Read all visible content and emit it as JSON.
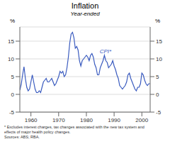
{
  "chart_data": {
    "type": "line",
    "title": "Inflation",
    "subtitle": "Year-ended",
    "ylabel": "%",
    "y2label": "%",
    "footnote": "* Excludes interest charges, tax changes associated with the new tax system and\neffects of major health policy changes.\nSources: ABS; RBA.",
    "x": [
      1956.0,
      1956.5,
      1957.0,
      1957.5,
      1958.0,
      1958.5,
      1959.0,
      1959.5,
      1960.0,
      1960.5,
      1961.0,
      1961.5,
      1962.0,
      1962.5,
      1963.0,
      1963.5,
      1964.0,
      1964.5,
      1965.0,
      1965.5,
      1966.0,
      1966.5,
      1967.0,
      1967.5,
      1968.0,
      1968.5,
      1969.0,
      1969.5,
      1970.0,
      1970.5,
      1971.0,
      1971.5,
      1972.0,
      1972.5,
      1973.0,
      1973.5,
      1974.0,
      1974.5,
      1975.0,
      1975.5,
      1976.0,
      1976.5,
      1977.0,
      1977.5,
      1978.0,
      1978.5,
      1979.0,
      1979.5,
      1980.0,
      1980.5,
      1981.0,
      1981.5,
      1982.0,
      1982.5,
      1983.0,
      1983.5,
      1984.0,
      1984.5,
      1985.0,
      1985.5,
      1986.0,
      1986.5,
      1987.0,
      1987.5,
      1988.0,
      1988.5,
      1989.0,
      1989.5,
      1990.0,
      1990.5,
      1991.0,
      1991.5,
      1992.0,
      1992.5,
      1993.0,
      1993.5,
      1994.0,
      1994.5,
      1995.0,
      1995.5,
      1996.0,
      1996.5,
      1997.0,
      1997.5,
      1998.0,
      1998.5,
      1999.0,
      1999.5,
      2000.0,
      2000.5,
      2001.0,
      2001.5,
      2002.0,
      2002.5,
      2003.0
    ],
    "series": [
      {
        "color": "#3a5bbf",
        "values": [
          1.2,
          2.8,
          5.5,
          7.8,
          4.5,
          2.0,
          1.0,
          1.5,
          3.5,
          5.5,
          3.5,
          1.5,
          0.5,
          0.5,
          1.0,
          0.5,
          2.0,
          3.5,
          4.0,
          4.5,
          3.5,
          3.5,
          4.0,
          4.5,
          3.5,
          2.5,
          3.0,
          4.0,
          5.0,
          6.5,
          6.0,
          6.5,
          5.0,
          5.5,
          7.5,
          10.5,
          14.5,
          17.0,
          17.5,
          16.0,
          13.0,
          13.5,
          12.5,
          9.5,
          8.0,
          9.5,
          10.0,
          10.5,
          11.0,
          10.5,
          9.5,
          11.0,
          11.5,
          10.5,
          8.5,
          7.5,
          5.5,
          5.5,
          7.5,
          8.5,
          9.5,
          11.0,
          9.5,
          9.0,
          7.5,
          8.0,
          8.5,
          9.5,
          8.0,
          7.0,
          5.5,
          4.5,
          2.5,
          2.0,
          1.5,
          2.0,
          2.5,
          3.5,
          5.5,
          6.0,
          4.5,
          3.5,
          2.5,
          1.5,
          1.0,
          2.0,
          2.0,
          3.0,
          6.0,
          5.5,
          4.0,
          3.0,
          2.5,
          3.0,
          3.0
        ]
      }
    ],
    "xlim": [
      1956,
      2003
    ],
    "xticks": [
      1960,
      1970,
      1980,
      1990,
      2000
    ],
    "ylim": [
      -5,
      19
    ],
    "yticks": [
      -5,
      0,
      5,
      10,
      15
    ],
    "y2lim": [
      -5,
      19
    ],
    "y2ticks": [
      -5,
      0,
      5,
      10,
      15
    ],
    "grid": true,
    "annotations": [
      {
        "text": "CPI*",
        "x": 1983.5,
        "y": 12.2
      }
    ]
  }
}
